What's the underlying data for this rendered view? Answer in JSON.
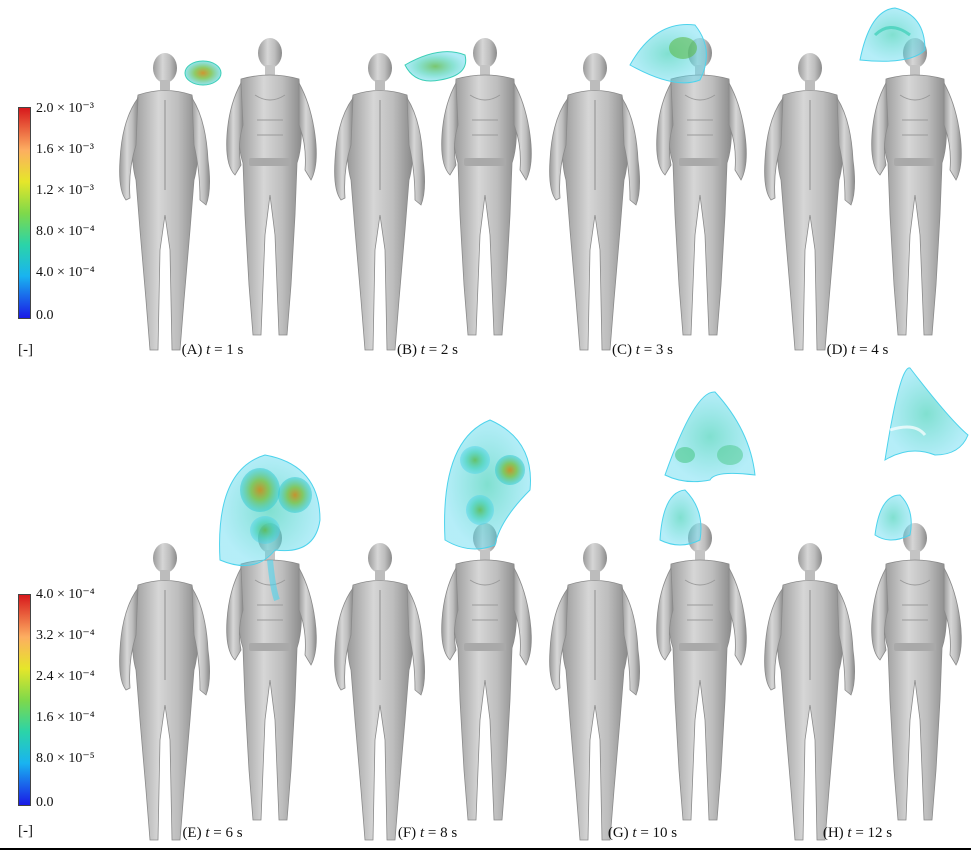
{
  "figure": {
    "top_colorbar": {
      "ticks": [
        "2.0 × 10⁻³",
        "1.6 × 10⁻³",
        "1.2 × 10⁻³",
        "8.0 × 10⁻⁴",
        "4.0 × 10⁻⁴",
        "0.0"
      ],
      "unit": "[-]",
      "colors": [
        "#d7191c",
        "#fdae61",
        "#a6d96a",
        "#2bd4a8",
        "#19b4f0",
        "#1a1ae6"
      ]
    },
    "bottom_colorbar": {
      "ticks": [
        "4.0 × 10⁻⁴",
        "3.2 × 10⁻⁴",
        "2.4 × 10⁻⁴",
        "1.6 × 10⁻⁴",
        "8.0 × 10⁻⁵",
        "0.0"
      ],
      "unit": "[-]",
      "colors": [
        "#d7191c",
        "#fdae61",
        "#a6d96a",
        "#2bd4a8",
        "#19b4f0",
        "#1a1ae6"
      ]
    },
    "panels": [
      {
        "id": "A",
        "letter": "(A) ",
        "var": "t",
        "rest": " = 1 s"
      },
      {
        "id": "B",
        "letter": "(B) ",
        "var": "t",
        "rest": " = 2 s"
      },
      {
        "id": "C",
        "letter": "(C) ",
        "var": "t",
        "rest": " = 3 s"
      },
      {
        "id": "D",
        "letter": "(D) ",
        "var": "t",
        "rest": " = 4 s"
      },
      {
        "id": "E",
        "letter": "(E) ",
        "var": "t",
        "rest": " = 6 s"
      },
      {
        "id": "F",
        "letter": "(F) ",
        "var": "t",
        "rest": " = 8 s"
      },
      {
        "id": "G",
        "letter": "(G) ",
        "var": "t",
        "rest": " = 10 s"
      },
      {
        "id": "H",
        "letter": "(H) ",
        "var": "t",
        "rest": " = 12 s"
      }
    ]
  }
}
